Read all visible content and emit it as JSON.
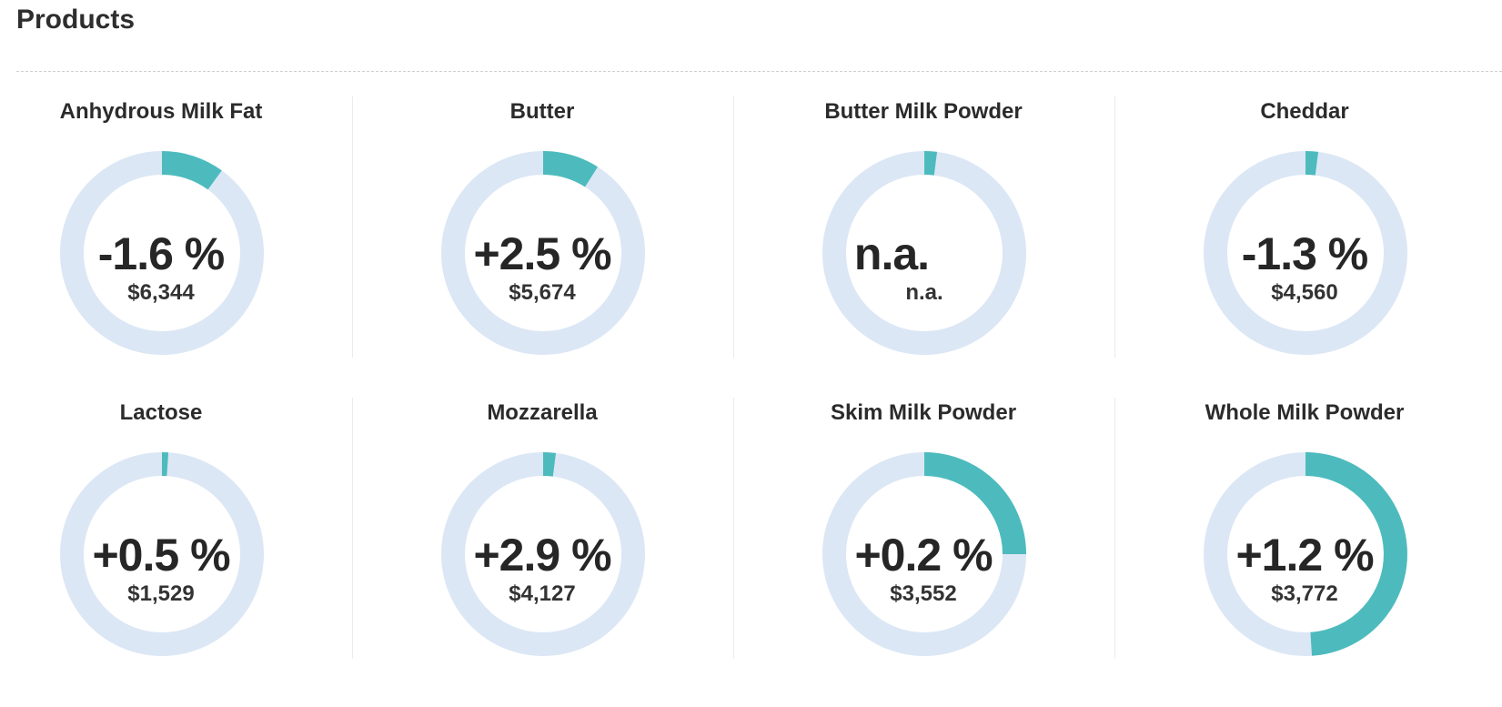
{
  "page": {
    "title": "Products"
  },
  "colors": {
    "track": "#dce7f5",
    "accent": "#4dbbbd"
  },
  "chart_data": {
    "type": "donut",
    "products": [
      {
        "name": "Anhydrous Milk Fat",
        "change": "-1.6 %",
        "price": "$6,344",
        "fill_fraction": 0.1
      },
      {
        "name": "Butter",
        "change": "+2.5 %",
        "price": "$5,674",
        "fill_fraction": 0.09
      },
      {
        "name": "Butter Milk Powder",
        "change": "n.a.",
        "price": "n.a.",
        "fill_fraction": 0.02
      },
      {
        "name": "Cheddar",
        "change": "-1.3 %",
        "price": "$4,560",
        "fill_fraction": 0.02
      },
      {
        "name": "Lactose",
        "change": "+0.5 %",
        "price": "$1,529",
        "fill_fraction": 0.01
      },
      {
        "name": "Mozzarella",
        "change": "+2.9 %",
        "price": "$4,127",
        "fill_fraction": 0.02
      },
      {
        "name": "Skim Milk Powder",
        "change": "+0.2 %",
        "price": "$3,552",
        "fill_fraction": 0.25
      },
      {
        "name": "Whole Milk Powder",
        "change": "+1.2 %",
        "price": "$3,772",
        "fill_fraction": 0.49
      }
    ]
  }
}
